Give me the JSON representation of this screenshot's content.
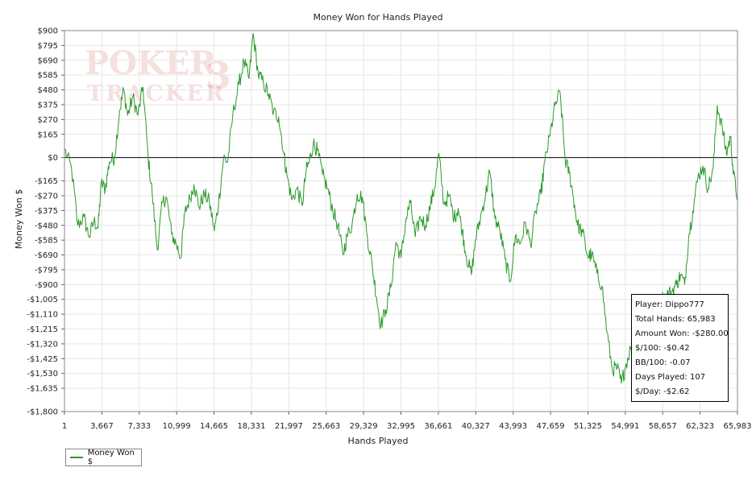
{
  "chart_data": {
    "type": "line",
    "title": "Money Won for Hands Played",
    "xlabel": "Hands Played",
    "ylabel": "Money Won $",
    "xlim": [
      1,
      65983
    ],
    "ylim": [
      -1800,
      900
    ],
    "x_ticks": [
      "1",
      "3,667",
      "7,333",
      "10,999",
      "14,665",
      "18,331",
      "21,997",
      "25,663",
      "29,329",
      "32,995",
      "36,661",
      "40,327",
      "43,993",
      "47,659",
      "51,325",
      "54,991",
      "58,657",
      "62,323",
      "65,983"
    ],
    "y_ticks": [
      {
        "label": "$900",
        "value": 900
      },
      {
        "label": "$795",
        "value": 795
      },
      {
        "label": "$690",
        "value": 690
      },
      {
        "label": "$585",
        "value": 585
      },
      {
        "label": "$480",
        "value": 480
      },
      {
        "label": "$375",
        "value": 375
      },
      {
        "label": "$270",
        "value": 270
      },
      {
        "label": "$165",
        "value": 165
      },
      {
        "label": "$0",
        "value": 0
      },
      {
        "label": "-$165",
        "value": -165
      },
      {
        "label": "-$270",
        "value": -270
      },
      {
        "label": "-$375",
        "value": -375
      },
      {
        "label": "-$480",
        "value": -480
      },
      {
        "label": "-$585",
        "value": -585
      },
      {
        "label": "-$690",
        "value": -690
      },
      {
        "label": "-$795",
        "value": -795
      },
      {
        "label": "-$900",
        "value": -900
      },
      {
        "label": "-$1,005",
        "value": -1005
      },
      {
        "label": "-$1,110",
        "value": -1110
      },
      {
        "label": "-$1,215",
        "value": -1215
      },
      {
        "label": "-$1,320",
        "value": -1320
      },
      {
        "label": "-$1,425",
        "value": -1425
      },
      {
        "label": "-$1,530",
        "value": -1530
      },
      {
        "label": "-$1,635",
        "value": -1635
      },
      {
        "label": "-$1,800",
        "value": -1800
      }
    ],
    "grid": true,
    "legend_position": "bottom-left",
    "series": [
      {
        "name": "Money Won $",
        "color": "#2a9a2a",
        "points": [
          [
            1,
            60
          ],
          [
            700,
            -80
          ],
          [
            1300,
            -480
          ],
          [
            1900,
            -420
          ],
          [
            2400,
            -560
          ],
          [
            2900,
            -450
          ],
          [
            3300,
            -500
          ],
          [
            3600,
            -180
          ],
          [
            4000,
            -220
          ],
          [
            4400,
            -30
          ],
          [
            4900,
            0
          ],
          [
            5400,
            330
          ],
          [
            5800,
            480
          ],
          [
            6200,
            300
          ],
          [
            6700,
            430
          ],
          [
            7200,
            300
          ],
          [
            7700,
            500
          ],
          [
            8200,
            0
          ],
          [
            8600,
            -250
          ],
          [
            9100,
            -650
          ],
          [
            9600,
            -320
          ],
          [
            10000,
            -280
          ],
          [
            10500,
            -540
          ],
          [
            11000,
            -620
          ],
          [
            11400,
            -710
          ],
          [
            11800,
            -390
          ],
          [
            12300,
            -290
          ],
          [
            12700,
            -190
          ],
          [
            13200,
            -350
          ],
          [
            13700,
            -260
          ],
          [
            14200,
            -310
          ],
          [
            14700,
            -520
          ],
          [
            15100,
            -330
          ],
          [
            15600,
            0
          ],
          [
            16000,
            -30
          ],
          [
            16500,
            300
          ],
          [
            17100,
            520
          ],
          [
            17600,
            680
          ],
          [
            18100,
            560
          ],
          [
            18500,
            880
          ],
          [
            19000,
            590
          ],
          [
            19500,
            530
          ],
          [
            20000,
            450
          ],
          [
            20500,
            320
          ],
          [
            21000,
            290
          ],
          [
            21500,
            30
          ],
          [
            21800,
            -120
          ],
          [
            22300,
            -300
          ],
          [
            22800,
            -220
          ],
          [
            23300,
            -340
          ],
          [
            23700,
            -90
          ],
          [
            24000,
            -30
          ],
          [
            24400,
            100
          ],
          [
            24800,
            50
          ],
          [
            25300,
            -120
          ],
          [
            25800,
            -220
          ],
          [
            26300,
            -370
          ],
          [
            26800,
            -480
          ],
          [
            27300,
            -690
          ],
          [
            27700,
            -560
          ],
          [
            28200,
            -470
          ],
          [
            28700,
            -260
          ],
          [
            29200,
            -280
          ],
          [
            29700,
            -560
          ],
          [
            30200,
            -780
          ],
          [
            30600,
            -990
          ],
          [
            31000,
            -1190
          ],
          [
            31500,
            -1080
          ],
          [
            32000,
            -920
          ],
          [
            32500,
            -600
          ],
          [
            33000,
            -710
          ],
          [
            33500,
            -430
          ],
          [
            33900,
            -320
          ],
          [
            34400,
            -560
          ],
          [
            34900,
            -420
          ],
          [
            35400,
            -480
          ],
          [
            35900,
            -330
          ],
          [
            36300,
            -210
          ],
          [
            36700,
            30
          ],
          [
            37200,
            -330
          ],
          [
            37700,
            -270
          ],
          [
            38200,
            -430
          ],
          [
            38600,
            -360
          ],
          [
            39000,
            -520
          ],
          [
            39400,
            -700
          ],
          [
            39900,
            -830
          ],
          [
            40300,
            -580
          ],
          [
            40800,
            -420
          ],
          [
            41300,
            -260
          ],
          [
            41700,
            -100
          ],
          [
            42200,
            -430
          ],
          [
            42700,
            -520
          ],
          [
            43200,
            -720
          ],
          [
            43700,
            -880
          ],
          [
            44200,
            -560
          ],
          [
            44700,
            -610
          ],
          [
            45200,
            -460
          ],
          [
            45700,
            -620
          ],
          [
            46200,
            -380
          ],
          [
            46700,
            -260
          ],
          [
            47100,
            -30
          ],
          [
            47600,
            160
          ],
          [
            48100,
            370
          ],
          [
            48600,
            460
          ],
          [
            49100,
            -20
          ],
          [
            49500,
            -110
          ],
          [
            49900,
            -280
          ],
          [
            50300,
            -480
          ],
          [
            50800,
            -530
          ],
          [
            51300,
            -700
          ],
          [
            51700,
            -690
          ],
          [
            52200,
            -820
          ],
          [
            52700,
            -910
          ],
          [
            53200,
            -1240
          ],
          [
            53700,
            -1500
          ],
          [
            54200,
            -1490
          ],
          [
            54600,
            -1600
          ],
          [
            55000,
            -1480
          ],
          [
            55500,
            -1350
          ],
          [
            56000,
            -1270
          ],
          [
            56500,
            -1180
          ],
          [
            57000,
            -1140
          ],
          [
            57500,
            -1100
          ],
          [
            58000,
            -1060
          ],
          [
            58500,
            -1000
          ],
          [
            59000,
            -980
          ],
          [
            59500,
            -950
          ],
          [
            60000,
            -900
          ],
          [
            60400,
            -830
          ],
          [
            60800,
            -900
          ],
          [
            61200,
            -560
          ],
          [
            61600,
            -380
          ],
          [
            62100,
            -140
          ],
          [
            62600,
            -60
          ],
          [
            63100,
            -220
          ],
          [
            63600,
            -80
          ],
          [
            64000,
            370
          ],
          [
            64500,
            210
          ],
          [
            64900,
            30
          ],
          [
            65300,
            150
          ],
          [
            65600,
            -120
          ],
          [
            65983,
            -280
          ]
        ]
      }
    ]
  },
  "watermark": {
    "line1": "POKER",
    "line2": "TRACKER",
    "mark": "3"
  },
  "stats": {
    "player": "Player: Dippo777",
    "total_hands": "Total Hands: 65,983",
    "amount_won": "Amount Won: -$280.00",
    "per100": "$/100: -$0.42",
    "bb100": "BB/100: -0.07",
    "days_played": "Days Played: 107",
    "per_day": "$/Day: -$2.62"
  }
}
